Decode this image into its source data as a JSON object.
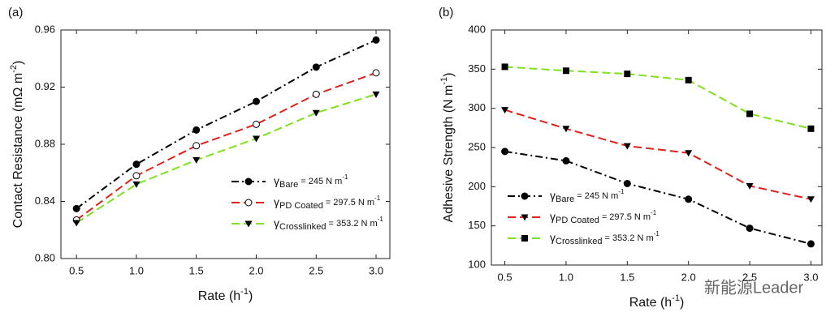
{
  "chart_data": [
    {
      "type": "line",
      "panel": "(a)",
      "xlabel": "Rate (h",
      "xlabel_sup": "-1",
      "xlabel_end": ")",
      "ylabel": "Contact Resistance (mΩ m",
      "ylabel_sup": "-2",
      "ylabel_end": ")",
      "x": [
        0.5,
        1.0,
        1.5,
        2.0,
        2.5,
        3.0
      ],
      "xlim": [
        0.37,
        3.115
      ],
      "xticks": [
        0.5,
        {
          "value": 1.0,
          "label": "1.0"
        },
        1.5,
        {
          "value": 2.0,
          "label": "2.0"
        },
        2.5,
        {
          "value": 3.0,
          "label": "3.0"
        }
      ],
      "ylim": [
        0.8,
        0.96
      ],
      "yticks": [
        {
          "value": 0.8,
          "label": "0.80"
        },
        0.84,
        0.88,
        0.92,
        0.96
      ],
      "legend": "lower-right",
      "series": [
        {
          "name": {
            "main": "γ",
            "sub": "Bare",
            "rest": "= 245 N m",
            "sup": "-1"
          },
          "color": "#000000",
          "marker": "circle",
          "dash": "dashdot",
          "values": [
            0.835,
            0.866,
            0.89,
            0.91,
            0.934,
            0.953
          ]
        },
        {
          "name": {
            "main": "γ",
            "sub": "PD Coated",
            "rest": "= 297.5 N m",
            "sup": "-1"
          },
          "color": "#e0201b",
          "marker": "open-circle",
          "dash": "dash",
          "values": [
            0.827,
            0.858,
            0.879,
            0.894,
            0.915,
            0.93
          ]
        },
        {
          "name": {
            "main": "γ",
            "sub": "Crosslinked",
            "rest": "= 353.2 N m",
            "sup": "-1"
          },
          "color": "#7fe020",
          "marker": "triangle",
          "dash": "dash",
          "values": [
            0.825,
            0.852,
            0.869,
            0.884,
            0.902,
            0.915
          ]
        }
      ]
    },
    {
      "type": "line",
      "panel": "(b)",
      "xlabel": "Rate (h",
      "xlabel_sup": "-1",
      "xlabel_end": ")",
      "ylabel": "Adhesive Strength (N m",
      "ylabel_sup": "-1",
      "ylabel_end": ")",
      "x": [
        0.5,
        1.0,
        1.5,
        2.0,
        2.5,
        3.0
      ],
      "xlim": [
        0.39,
        3.09
      ],
      "xticks": [
        0.5,
        {
          "value": 1.0,
          "label": "1.0"
        },
        1.5,
        {
          "value": 2.0,
          "label": "2.0"
        },
        2.5,
        {
          "value": 3.0,
          "label": "3.0"
        }
      ],
      "ylim": [
        100,
        400
      ],
      "yticks": [
        100,
        150,
        200,
        250,
        300,
        350,
        400
      ],
      "legend": "lower-left",
      "series": [
        {
          "name": {
            "main": "γ",
            "sub": "Bare",
            "rest": "= 245 N m",
            "sup": "-1"
          },
          "color": "#000000",
          "marker": "circle",
          "dash": "dashdot",
          "values": [
            245,
            233,
            204,
            184,
            147,
            127
          ]
        },
        {
          "name": {
            "main": "γ",
            "sub": "PD Coated",
            "rest": "= 297.5 N m",
            "sup": "-1"
          },
          "color": "#e0201b",
          "marker": "triangle",
          "dash": "dash",
          "values": [
            298,
            274,
            252,
            243,
            201,
            184
          ]
        },
        {
          "name": {
            "main": "γ",
            "sub": "Crosslinked",
            "rest": "= 353.2 N m",
            "sup": "-1"
          },
          "color": "#7fe020",
          "marker": "square",
          "dash": "dash",
          "values": [
            353,
            348,
            344,
            336,
            293,
            274
          ]
        }
      ]
    }
  ],
  "watermark": "新能源Leader"
}
